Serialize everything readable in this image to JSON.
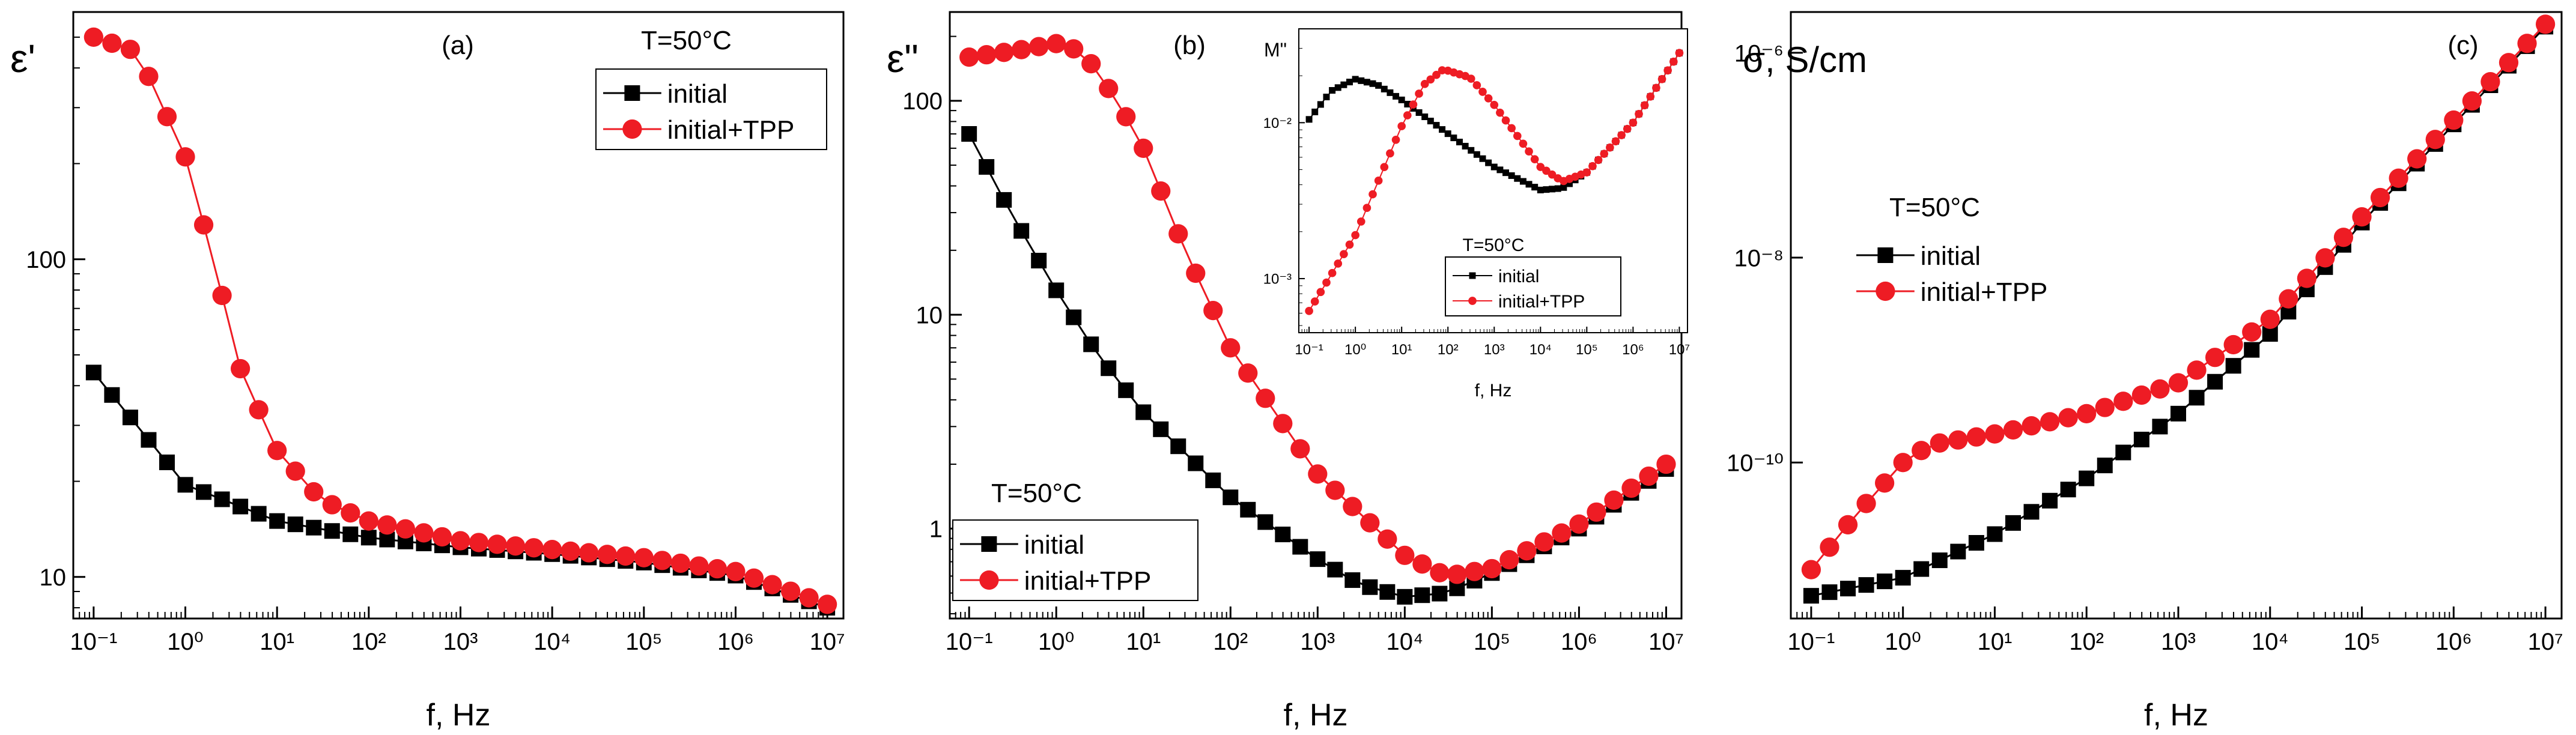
{
  "colors": {
    "initial": "#000000",
    "tpp": "#ee1c24",
    "axis": "#000000"
  },
  "chart_data": [
    {
      "type": "line",
      "panel_label": "(a)",
      "title": "",
      "xlabel": "f, Hz",
      "ylabel": "ε'",
      "xscale": "log",
      "yscale": "log",
      "xlim": [
        0.06,
        15000000
      ],
      "ylim": [
        7.4,
        600
      ],
      "xticks": [
        {
          "value": 0.1,
          "label": "10⁻¹"
        },
        {
          "value": 1,
          "label": "10⁰"
        },
        {
          "value": 10,
          "label": "10¹"
        },
        {
          "value": 100,
          "label": "10²"
        },
        {
          "value": 1000,
          "label": "10³"
        },
        {
          "value": 10000,
          "label": "10⁴"
        },
        {
          "value": 100000,
          "label": "10⁵"
        },
        {
          "value": 1000000,
          "label": "10⁶"
        },
        {
          "value": 10000000,
          "label": "10⁷"
        }
      ],
      "yticks": [
        {
          "value": 10,
          "label": "10"
        },
        {
          "value": 100,
          "label": "100"
        }
      ],
      "annotation": "T=50°C",
      "legend_position": "top-right",
      "series": [
        {
          "name": "initial",
          "color": "#000000",
          "marker": "square",
          "x": [
            0.1,
            1,
            10,
            100,
            1000,
            10000,
            100000,
            1000000,
            10000000
          ],
          "y": [
            44,
            19.5,
            15,
            13.3,
            12.4,
            11.8,
            11.1,
            10.1,
            8
          ]
        },
        {
          "name": "initial+TPP",
          "color": "#ee1c24",
          "marker": "circle",
          "x": [
            0.1,
            0.3,
            1,
            2,
            4,
            10,
            30,
            100,
            1000,
            10000,
            100000,
            1000000,
            10000000
          ],
          "y": [
            500,
            450,
            210,
            100,
            45,
            25,
            17.5,
            15,
            13,
            12.2,
            11.5,
            10.4,
            8.2
          ]
        }
      ]
    },
    {
      "type": "line",
      "panel_label": "(b)",
      "title": "",
      "xlabel": "f, Hz",
      "ylabel": "ε\"",
      "xscale": "log",
      "yscale": "log",
      "xlim": [
        0.06,
        15000000
      ],
      "ylim": [
        0.38,
        260
      ],
      "xticks": [
        {
          "value": 0.1,
          "label": "10⁻¹"
        },
        {
          "value": 1,
          "label": "10⁰"
        },
        {
          "value": 10,
          "label": "10¹"
        },
        {
          "value": 100,
          "label": "10²"
        },
        {
          "value": 1000,
          "label": "10³"
        },
        {
          "value": 10000,
          "label": "10⁴"
        },
        {
          "value": 100000,
          "label": "10⁵"
        },
        {
          "value": 1000000,
          "label": "10⁶"
        },
        {
          "value": 10000000,
          "label": "10⁷"
        }
      ],
      "yticks": [
        {
          "value": 1,
          "label": "1"
        },
        {
          "value": 10,
          "label": "10"
        },
        {
          "value": 100,
          "label": "100"
        }
      ],
      "annotation": "T=50°C",
      "legend_position": "bottom-left",
      "series": [
        {
          "name": "initial",
          "color": "#000000",
          "marker": "square",
          "x": [
            0.1,
            0.3,
            1,
            3,
            10,
            100,
            1000,
            3000,
            10000,
            30000,
            100000,
            1000000,
            10000000
          ],
          "y": [
            70,
            30,
            13,
            6.5,
            3.5,
            1.4,
            0.72,
            0.55,
            0.48,
            0.5,
            0.62,
            1.0,
            1.9
          ]
        },
        {
          "name": "initial+TPP",
          "color": "#ee1c24",
          "marker": "circle",
          "x": [
            0.1,
            0.3,
            1,
            2,
            5,
            10,
            30,
            100,
            1000,
            10000,
            30000,
            100000,
            1000000,
            10000000
          ],
          "y": [
            160,
            170,
            185,
            170,
            100,
            60,
            20,
            7,
            1.8,
            0.75,
            0.6,
            0.65,
            1.05,
            2.0
          ]
        }
      ],
      "inset": {
        "ylabel": "M\"",
        "xlabel": "f, Hz",
        "xscale": "log",
        "yscale": "log",
        "xlim": [
          0.06,
          15000000
        ],
        "ylim": [
          0.00045,
          0.04
        ],
        "xticks": [
          {
            "value": 0.1,
            "label": "10⁻¹"
          },
          {
            "value": 1,
            "label": "10⁰"
          },
          {
            "value": 10,
            "label": "10¹"
          },
          {
            "value": 100,
            "label": "10²"
          },
          {
            "value": 1000,
            "label": "10³"
          },
          {
            "value": 10000,
            "label": "10⁴"
          },
          {
            "value": 100000,
            "label": "10⁵"
          },
          {
            "value": 1000000,
            "label": "10⁶"
          },
          {
            "value": 10000000,
            "label": "10⁷"
          }
        ],
        "yticks": [
          {
            "value": 0.001,
            "label": "10⁻³"
          },
          {
            "value": 0.01,
            "label": "10⁻²"
          }
        ],
        "annotation": "T=50°C",
        "series": [
          {
            "name": "initial",
            "color": "#000000",
            "marker": "square",
            "x": [
              0.1,
              0.3,
              1,
              3,
              10,
              100,
              1000,
              10000,
              30000,
              100000,
              1000000,
              10000000
            ],
            "y": [
              0.0105,
              0.016,
              0.019,
              0.0175,
              0.014,
              0.0085,
              0.0052,
              0.0037,
              0.0038,
              0.0048,
              0.01,
              0.028
            ]
          },
          {
            "name": "initial+TPP",
            "color": "#ee1c24",
            "marker": "circle",
            "x": [
              0.1,
              1,
              10,
              30,
              80,
              300,
              1000,
              10000,
              30000,
              100000,
              1000000,
              10000000
            ],
            "y": [
              0.00062,
              0.0019,
              0.0095,
              0.0175,
              0.022,
              0.0195,
              0.013,
              0.0052,
              0.0042,
              0.0048,
              0.01,
              0.028
            ]
          }
        ]
      }
    },
    {
      "type": "line",
      "panel_label": "(c)",
      "title": "",
      "xlabel": "f, Hz",
      "ylabel": "σ, S/cm",
      "xscale": "log",
      "yscale": "log",
      "xlim": [
        0.06,
        15000000
      ],
      "ylim": [
        3e-12,
        2.5e-06
      ],
      "xticks": [
        {
          "value": 0.1,
          "label": "10⁻¹"
        },
        {
          "value": 1,
          "label": "10⁰"
        },
        {
          "value": 10,
          "label": "10¹"
        },
        {
          "value": 100,
          "label": "10²"
        },
        {
          "value": 1000,
          "label": "10³"
        },
        {
          "value": 10000,
          "label": "10⁴"
        },
        {
          "value": 100000,
          "label": "10⁵"
        },
        {
          "value": 1000000,
          "label": "10⁶"
        },
        {
          "value": 10000000,
          "label": "10⁷"
        }
      ],
      "yticks": [
        {
          "value": 1e-10,
          "label": "10⁻¹⁰"
        },
        {
          "value": 1e-08,
          "label": "10⁻⁸"
        },
        {
          "value": 1e-06,
          "label": "10⁻⁶"
        }
      ],
      "annotation": "T=50°C",
      "legend_position": "middle-left",
      "series": [
        {
          "name": "initial",
          "color": "#000000",
          "marker": "square",
          "x": [
            0.1,
            1,
            10,
            100,
            1000,
            10000,
            100000,
            1000000,
            10000000
          ],
          "y": [
            5e-12,
            7.5e-12,
            2e-11,
            7e-11,
            3e-10,
            1.8e-09,
            2.2e-08,
            2e-07,
            1.8e-06
          ]
        },
        {
          "name": "initial+TPP",
          "color": "#ee1c24",
          "marker": "circle",
          "x": [
            0.1,
            0.3,
            1,
            2,
            10,
            100,
            1000,
            10000,
            100000,
            1000000,
            10000000
          ],
          "y": [
            9e-12,
            3e-11,
            1e-10,
            1.5e-10,
            1.9e-10,
            3e-10,
            6e-10,
            2.5e-09,
            2.5e-08,
            2.2e-07,
            1.9e-06
          ]
        }
      ]
    }
  ]
}
